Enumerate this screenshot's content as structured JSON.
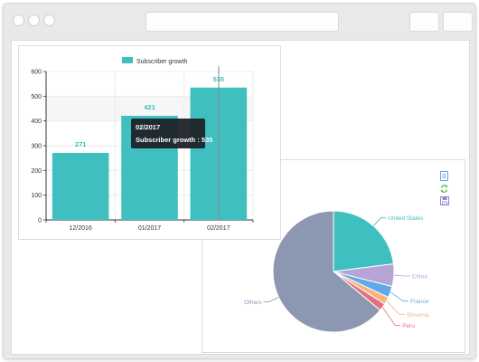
{
  "bar_chart": {
    "legend_label": "Subscriber growth",
    "tooltip": {
      "title": "02/2017",
      "line": "Subscriber growth : 535"
    }
  },
  "pie_chart": {
    "toolbar_icons": [
      "document-icon",
      "refresh-icon",
      "save-icon"
    ]
  },
  "chart_data": [
    {
      "type": "bar",
      "categories": [
        "12/2016",
        "01/2017",
        "02/2017"
      ],
      "series": [
        {
          "name": "Subscriber growth",
          "values": [
            271,
            421,
            535
          ]
        }
      ],
      "ylim": [
        0,
        600
      ],
      "yticks": [
        "0",
        "100",
        "200",
        "300",
        "400",
        "500",
        "600"
      ],
      "grid": true,
      "legend": "top",
      "color": "#3fbfbf"
    },
    {
      "type": "pie",
      "labels": [
        "United States",
        "China",
        "France",
        "Slovenia",
        "Peru",
        "Others"
      ],
      "values": [
        23,
        6,
        3,
        2,
        2,
        64
      ],
      "colors": [
        "#3fbfbf",
        "#b5a4d6",
        "#5fa9e8",
        "#f7b27e",
        "#e56f7f",
        "#8c97b2"
      ]
    }
  ]
}
